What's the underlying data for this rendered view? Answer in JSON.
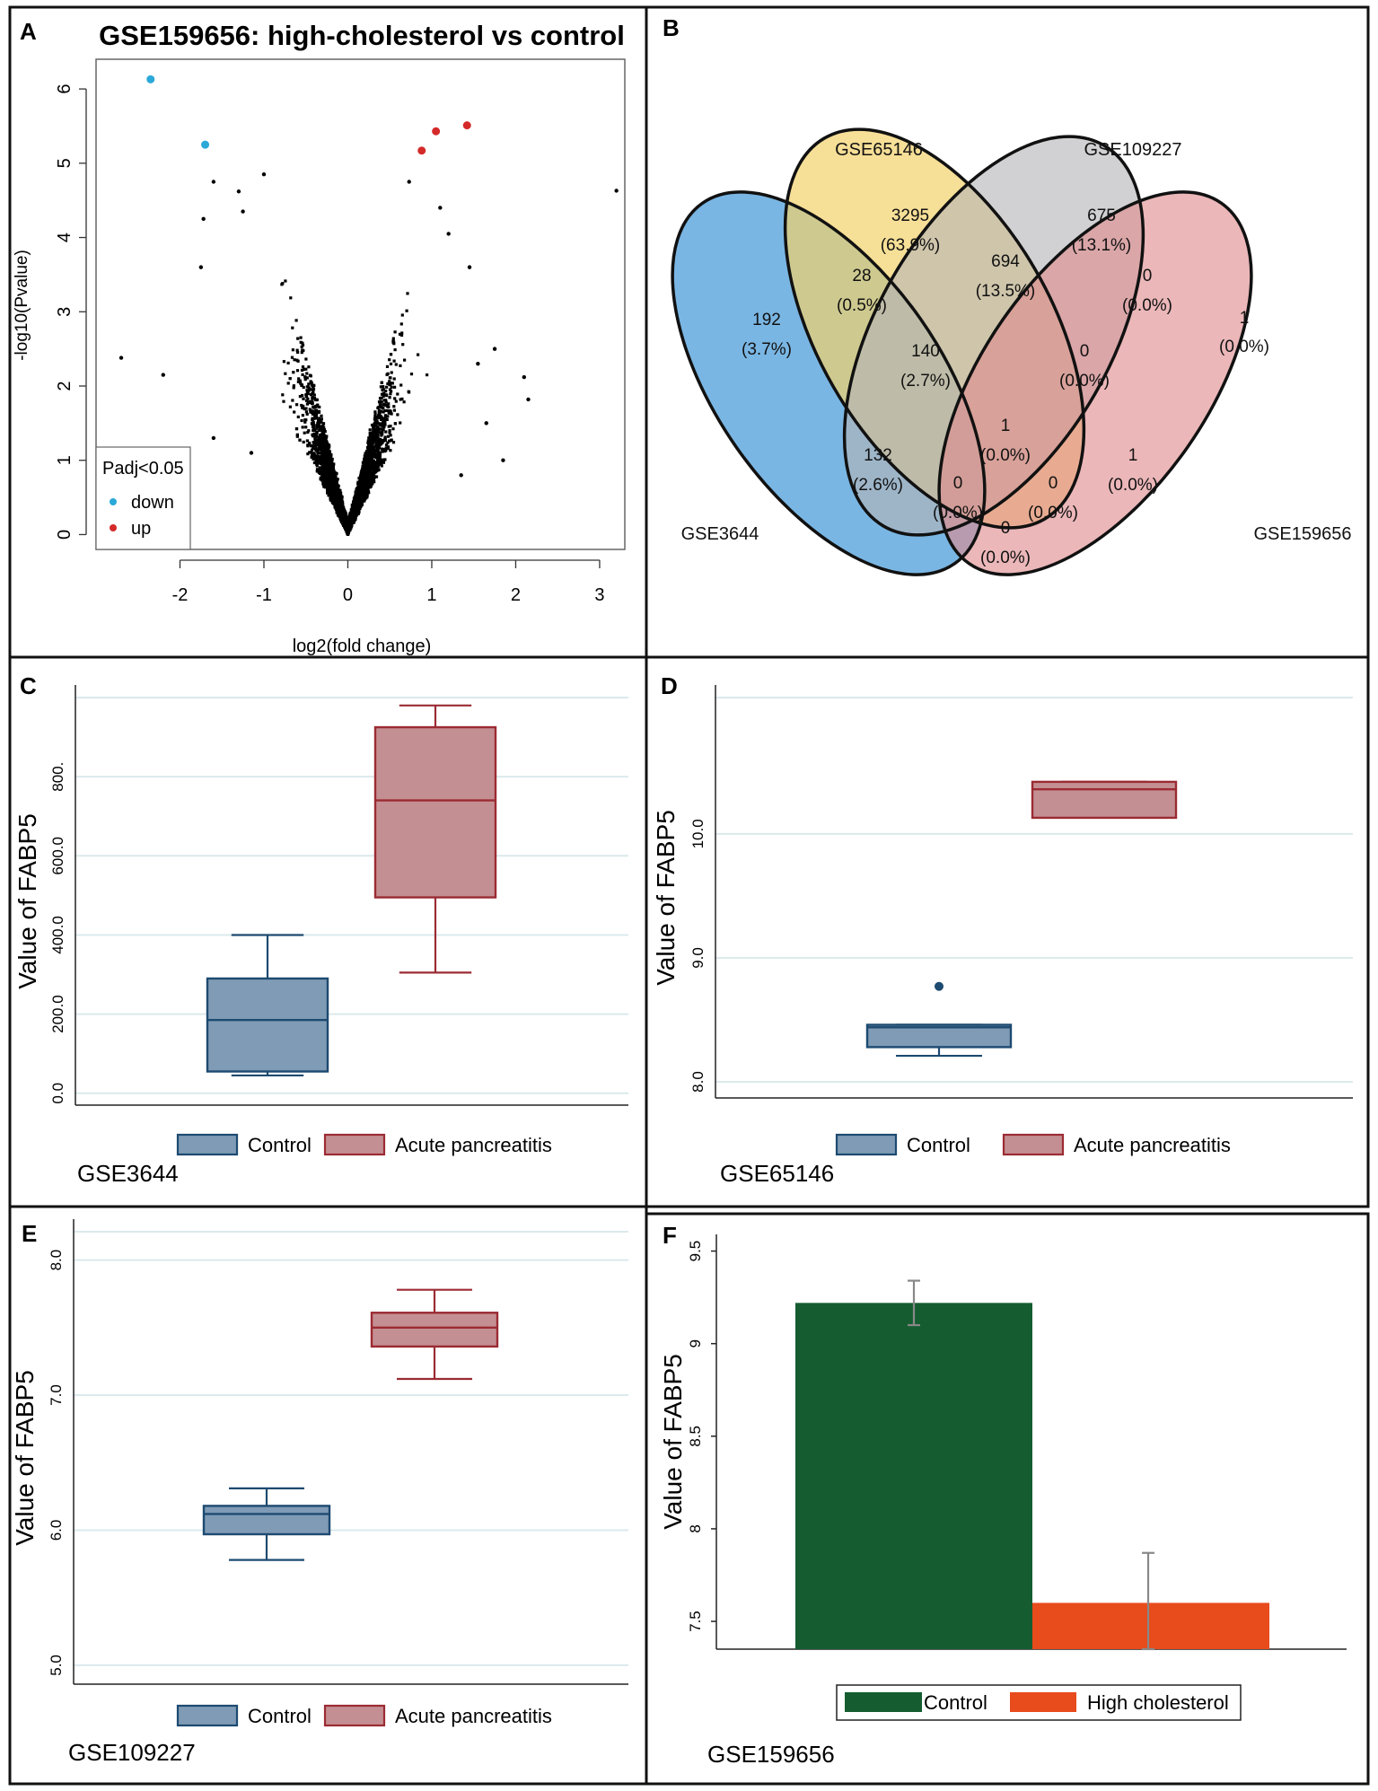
{
  "colors": {
    "volcano_down": "#2aa8d8",
    "volcano_up": "#d42a2a",
    "volcano_point": "#000000",
    "venn_gse3644": "#4d9ed9",
    "venn_gse65146": "#f2d26b",
    "venn_gse109227": "#b4b4b8",
    "venn_gse159656": "#df8a8e",
    "box_control_fill": "#7f9bb5",
    "box_control_stroke": "#1d4a70",
    "box_ap_fill": "#c48f92",
    "box_ap_stroke": "#9b2b33",
    "bar_control": "#155d31",
    "bar_high_cholesterol": "#e84b1c",
    "grid": "#dbe9ec"
  },
  "panels": {
    "a": {
      "letter": "A"
    },
    "b": {
      "letter": "B"
    },
    "c": {
      "letter": "C"
    },
    "d": {
      "letter": "D"
    },
    "e": {
      "letter": "E"
    },
    "f": {
      "letter": "F"
    }
  },
  "chart_data": [
    {
      "id": "A",
      "type": "scatter",
      "title": "GSE159656: high-cholesterol vs control",
      "xlabel": "log2(fold change)",
      "ylabel": "-log10(Pvalue)",
      "xlim": [
        -3,
        3.3
      ],
      "ylim": [
        -0.2,
        6.4
      ],
      "xticks": [
        "-2",
        "-1",
        "0",
        "1",
        "2",
        "3"
      ],
      "yticks": [
        "0",
        "1",
        "2",
        "3",
        "4",
        "5",
        "6"
      ],
      "legend": {
        "title": "Padj<0.05",
        "items": [
          "down",
          "up"
        ],
        "position": "bottom-left"
      },
      "down_points": [
        {
          "x": -2.35,
          "y": 6.13
        },
        {
          "x": -1.7,
          "y": 5.25
        }
      ],
      "up_points": [
        {
          "x": 0.88,
          "y": 5.17
        },
        {
          "x": 1.05,
          "y": 5.43
        },
        {
          "x": 1.42,
          "y": 5.51
        }
      ],
      "outliers": [
        {
          "x": -2.7,
          "y": 2.38
        },
        {
          "x": -2.2,
          "y": 2.15
        },
        {
          "x": -1.72,
          "y": 4.25
        },
        {
          "x": -1.6,
          "y": 4.75
        },
        {
          "x": -1.75,
          "y": 3.6
        },
        {
          "x": -1.3,
          "y": 4.62
        },
        {
          "x": -1.25,
          "y": 4.35
        },
        {
          "x": -1.0,
          "y": 4.85
        },
        {
          "x": -1.6,
          "y": 1.3
        },
        {
          "x": -1.15,
          "y": 1.1
        },
        {
          "x": 0.73,
          "y": 4.75
        },
        {
          "x": 1.1,
          "y": 4.4
        },
        {
          "x": 1.2,
          "y": 4.05
        },
        {
          "x": 1.45,
          "y": 3.6
        },
        {
          "x": 1.55,
          "y": 2.3
        },
        {
          "x": 1.65,
          "y": 1.5
        },
        {
          "x": 1.85,
          "y": 1.0
        },
        {
          "x": 1.35,
          "y": 0.8
        },
        {
          "x": 2.1,
          "y": 2.12
        },
        {
          "x": 2.15,
          "y": 1.82
        },
        {
          "x": 3.2,
          "y": 4.63
        },
        {
          "x": 1.75,
          "y": 2.5
        }
      ],
      "cloud": {
        "n_points": 6000,
        "x_spread": 1.3,
        "max_y": 3.9
      }
    },
    {
      "id": "B",
      "type": "venn",
      "sets": [
        "GSE3644",
        "GSE65146",
        "GSE109227",
        "GSE159656"
      ],
      "regions": [
        {
          "key": "only_3644",
          "count": "192",
          "pct": "(3.7%)"
        },
        {
          "key": "only_65146",
          "count": "3295",
          "pct": "(63.9%)"
        },
        {
          "key": "only_109227",
          "count": "675",
          "pct": "(13.1%)"
        },
        {
          "key": "only_159656",
          "count": "1",
          "pct": "(0.0%)"
        },
        {
          "key": "3644_65146",
          "count": "28",
          "pct": "(0.5%)"
        },
        {
          "key": "65146_109227",
          "count": "694",
          "pct": "(13.5%)"
        },
        {
          "key": "109227_159656",
          "count": "0",
          "pct": "(0.0%)"
        },
        {
          "key": "3644_65146_109227",
          "count": "140",
          "pct": "(2.7%)"
        },
        {
          "key": "65146_109227_159656",
          "count": "0",
          "pct": "(0.0%)"
        },
        {
          "key": "all",
          "count": "1",
          "pct": "(0.0%)"
        },
        {
          "key": "3644_109227",
          "count": "132",
          "pct": "(2.6%)"
        },
        {
          "key": "65146_159656",
          "count": "1",
          "pct": "(0.0%)"
        },
        {
          "key": "3644_109227_159656",
          "count": "0",
          "pct": "(0.0%)"
        },
        {
          "key": "3644_65146_159656",
          "count": "0",
          "pct": "(0.0%)"
        },
        {
          "key": "3644_159656",
          "count": "0",
          "pct": "(0.0%)"
        }
      ]
    },
    {
      "id": "C",
      "type": "box",
      "dataset": "GSE3644",
      "ylabel": "Value of FABP5",
      "ylim": [
        -30,
        1000
      ],
      "yticks": [
        0,
        200,
        400,
        600,
        800
      ],
      "ytick_labels": [
        "0.0",
        "200.0",
        "400.0",
        "600.0",
        "800."
      ],
      "categories": [
        "Control",
        "Acute pancreatitis"
      ],
      "boxes": [
        {
          "name": "Control",
          "min": 45,
          "q1": 55,
          "median": 185,
          "q3": 290,
          "max": 400,
          "outliers": []
        },
        {
          "name": "Acute pancreatitis",
          "min": 305,
          "q1": 495,
          "median": 740,
          "q3": 925,
          "max": 980,
          "outliers": []
        }
      ]
    },
    {
      "id": "D",
      "type": "box",
      "dataset": "GSE65146",
      "ylabel": "Value of FABP5",
      "ylim": [
        7.87,
        11.1
      ],
      "yticks": [
        8.0,
        9.0,
        10.0
      ],
      "ytick_labels": [
        "8.0",
        "9.0",
        "10.0"
      ],
      "categories": [
        "Control",
        "Acute pancreatitis"
      ],
      "boxes": [
        {
          "name": "Control",
          "min": 8.21,
          "q1": 8.28,
          "median": 8.44,
          "q3": 8.46,
          "max": 8.46,
          "outliers": [
            8.77
          ]
        },
        {
          "name": "Acute pancreatitis",
          "min": 10.13,
          "q1": 10.13,
          "median": 10.36,
          "q3": 10.42,
          "max": 10.42,
          "outliers": []
        }
      ]
    },
    {
      "id": "E",
      "type": "box",
      "dataset": "GSE109227",
      "ylabel": "Value of FABP5",
      "ylim": [
        4.86,
        8.21
      ],
      "yticks": [
        5.0,
        6.0,
        7.0,
        8.0
      ],
      "ytick_labels": [
        "5.0",
        "6.0",
        "7.0",
        "8.0"
      ],
      "categories": [
        "Control",
        "Acute pancreatitis"
      ],
      "boxes": [
        {
          "name": "Control",
          "min": 5.78,
          "q1": 5.97,
          "median": 6.12,
          "q3": 6.18,
          "max": 6.31,
          "outliers": []
        },
        {
          "name": "Acute pancreatitis",
          "min": 7.12,
          "q1": 7.36,
          "median": 7.5,
          "q3": 7.61,
          "max": 7.78,
          "outliers": []
        }
      ]
    },
    {
      "id": "F",
      "type": "bar",
      "dataset": "GSE159656",
      "ylabel": "Value of FABP5",
      "ylim": [
        7.35,
        9.59
      ],
      "yticks": [
        7.5,
        8,
        8.5,
        9,
        9.5
      ],
      "ytick_labels": [
        "7.5",
        "8",
        "8.5",
        "9",
        "9.5"
      ],
      "categories": [
        "Control",
        "High cholesterol"
      ],
      "values": [
        9.22,
        7.6
      ],
      "errors": [
        [
          9.1,
          9.34
        ],
        [
          7.35,
          7.87
        ]
      ]
    }
  ]
}
